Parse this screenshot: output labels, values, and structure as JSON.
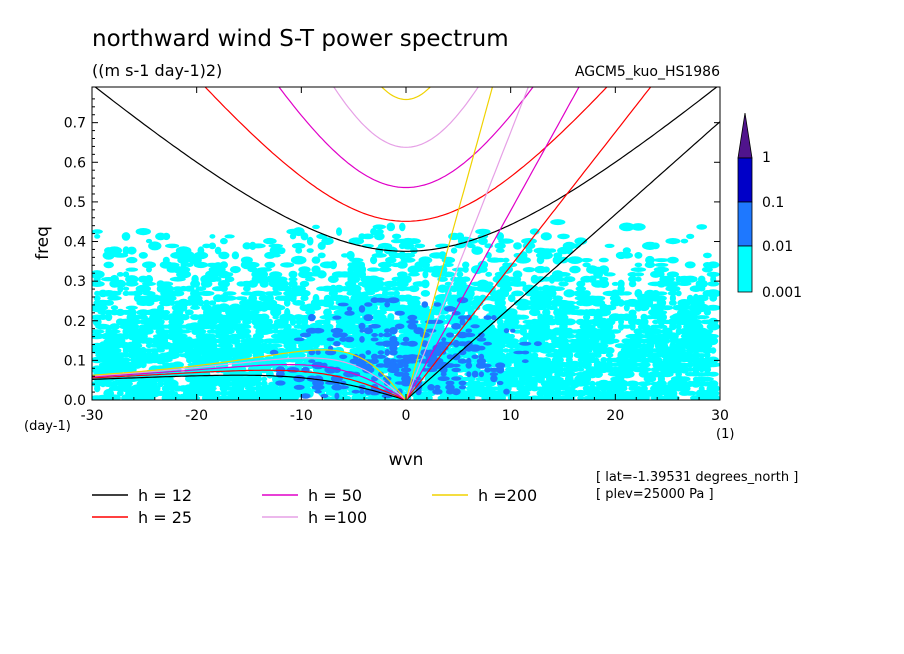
{
  "chart_data": {
    "type": "heatmap",
    "title": "northward wind S-T power spectrum",
    "units": "((m s-1 day-1)2)",
    "model": "AGCM5_kuo_HS1986",
    "xlabel": "wvn",
    "ylabel": "freq",
    "x_unit": "(1)",
    "y_unit": "(day-1)",
    "xlim": [
      -30,
      30
    ],
    "ylim": [
      0,
      0.79
    ],
    "xticks": [
      "-30",
      "-20",
      "-10",
      "0",
      "10",
      "20",
      "30"
    ],
    "yticks": [
      "0.0",
      "0.1",
      "0.2",
      "0.3",
      "0.4",
      "0.5",
      "0.6",
      "0.7"
    ],
    "colorbar": {
      "levels": [
        "0.001",
        "0.01",
        "0.1",
        "1"
      ],
      "colors": [
        "#00ffff",
        "#1e78ff",
        "#0000c8",
        "#50148c"
      ]
    },
    "annotations": [
      "[ lat=-1.39531 degrees_north ]",
      "[ plev=25000 Pa ]"
    ],
    "legend_position": "bottom",
    "series": [
      {
        "name": "h = 12",
        "h": 12,
        "color": "#000000"
      },
      {
        "name": "h = 25",
        "h": 25,
        "color": "#ff0000"
      },
      {
        "name": "h = 50",
        "h": 50,
        "color": "#e000c8"
      },
      {
        "name": "h =100",
        "h": 100,
        "color": "#e6a0e6"
      },
      {
        "name": "h =200",
        "h": 200,
        "color": "#f0d200"
      }
    ],
    "curves": [
      "Kelvin wave",
      "inertia-gravity waves n=1",
      "Rossby waves n=1"
    ],
    "heatmap_regions": [
      {
        "level": "0.001-0.01",
        "x": [
          -30,
          30
        ],
        "y": [
          0.0,
          0.5
        ]
      },
      {
        "level": "0.01-0.1",
        "x": [
          -18,
          16
        ],
        "y": [
          0.0,
          0.26
        ]
      }
    ]
  }
}
